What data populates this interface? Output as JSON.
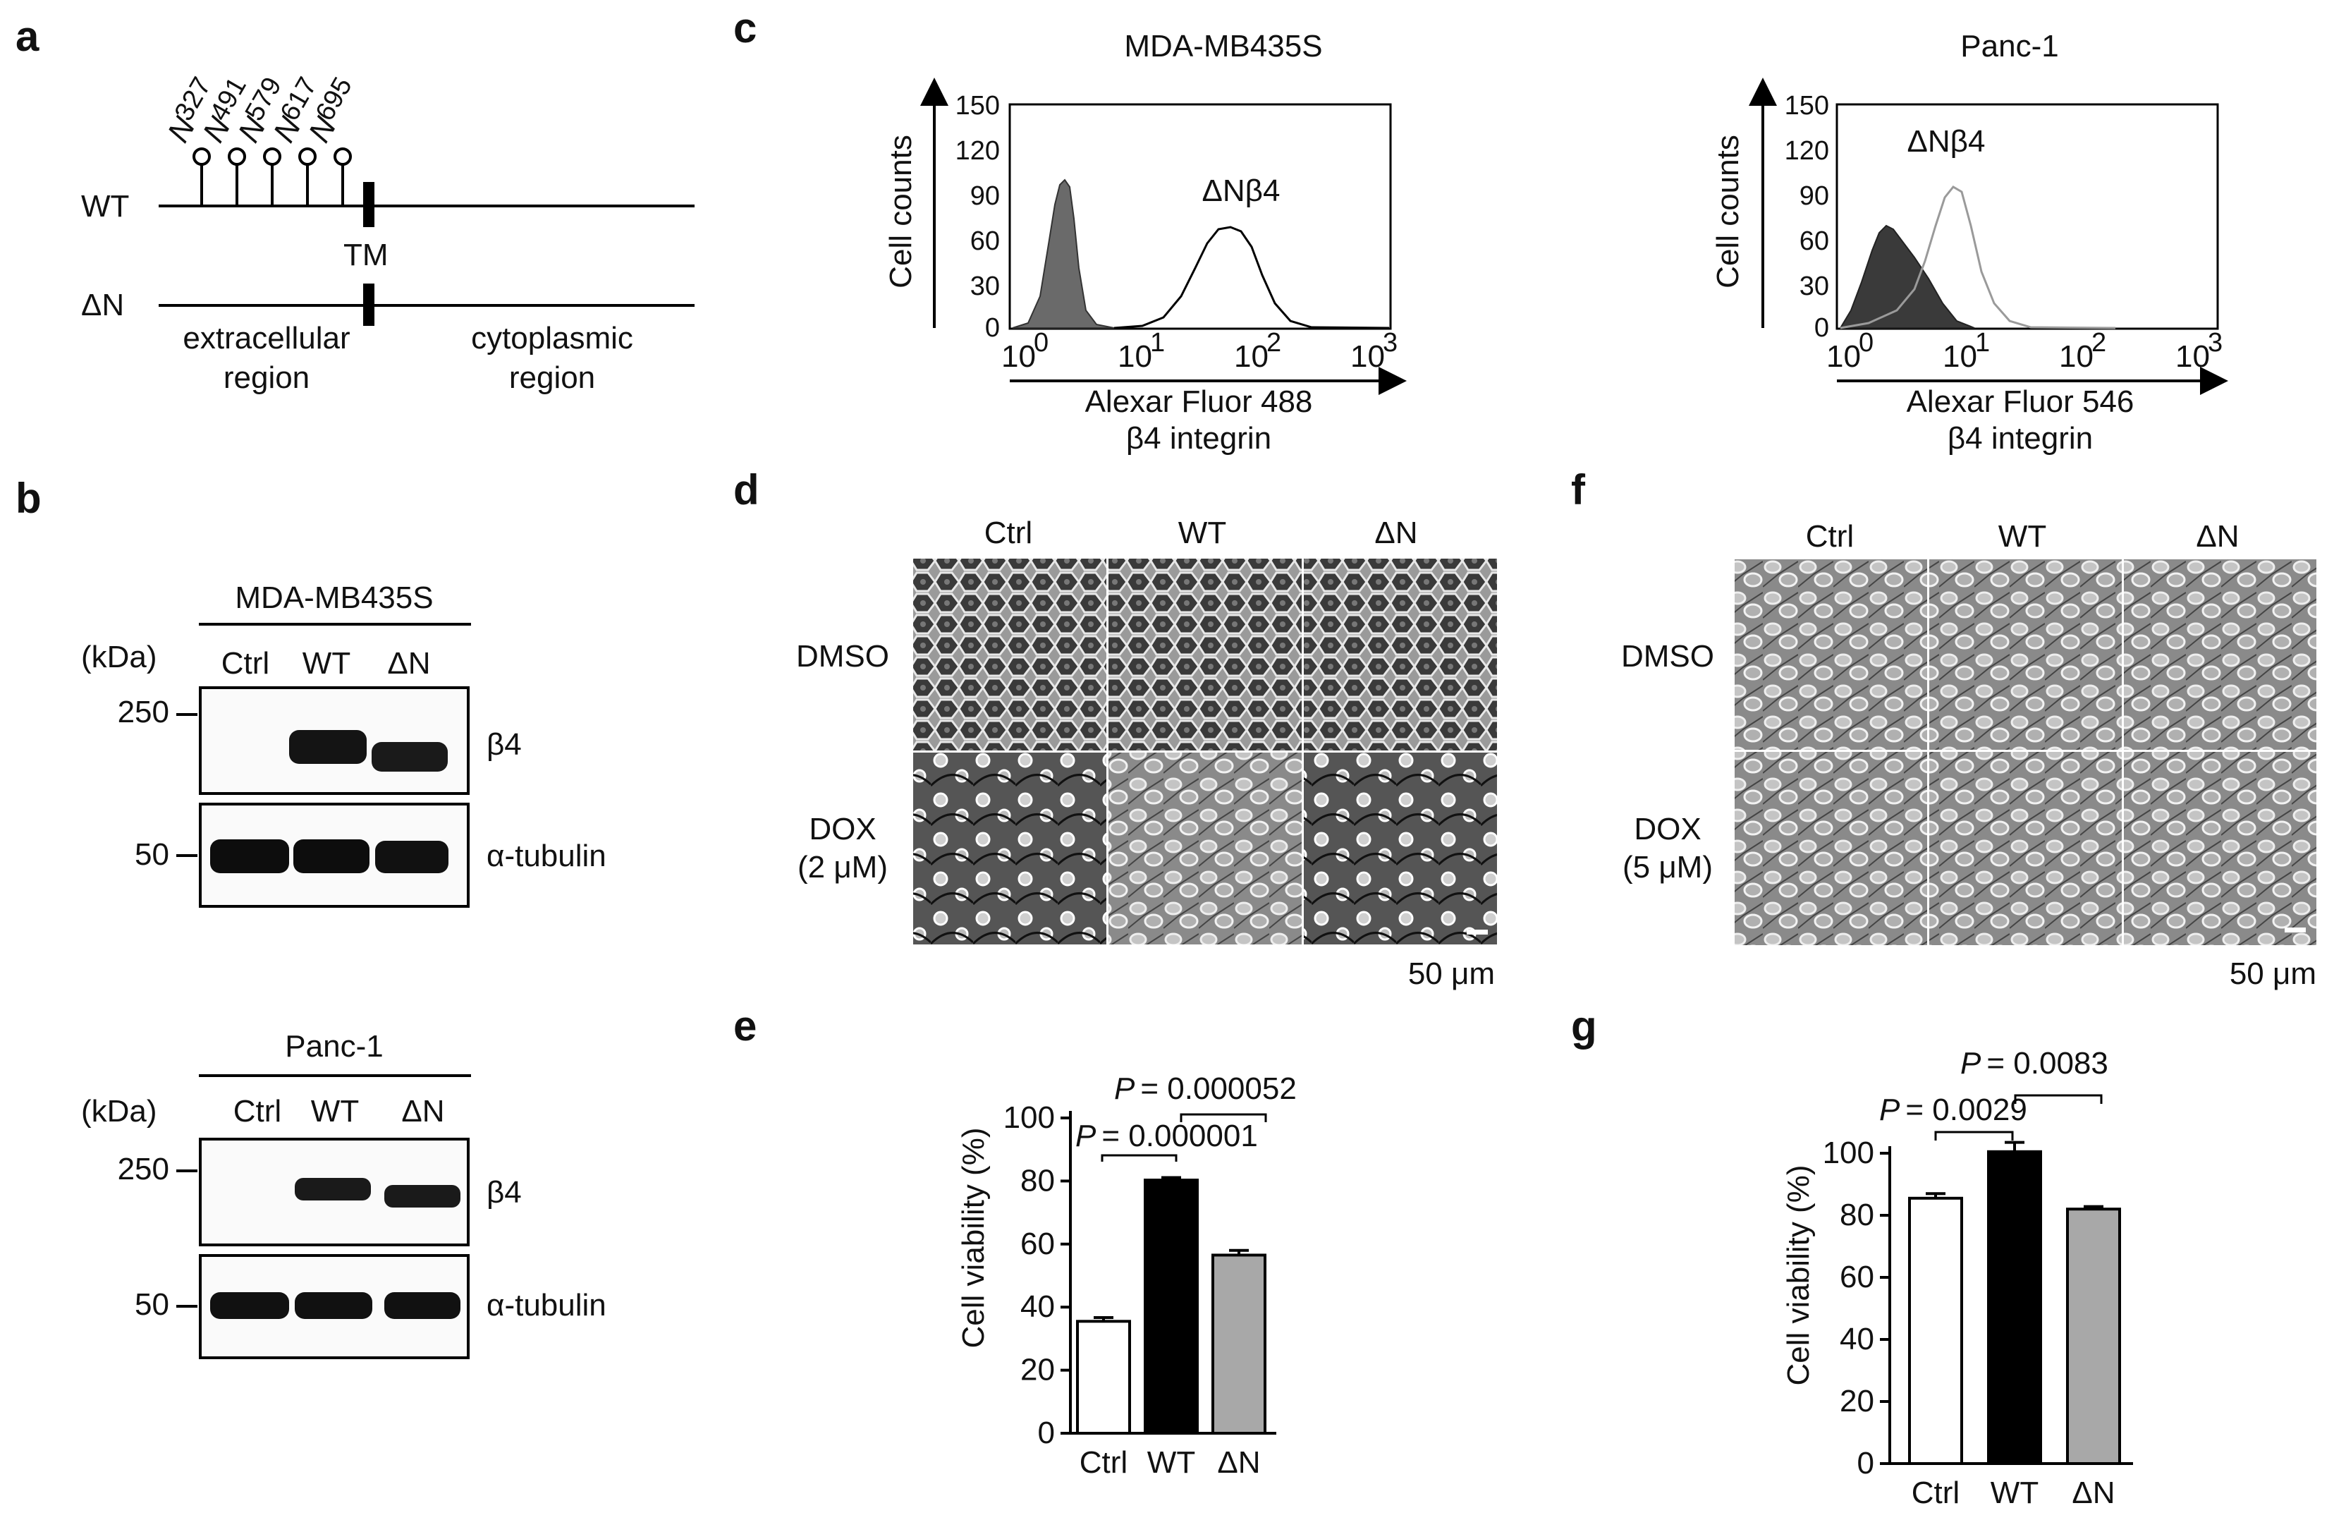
{
  "panels": {
    "a": {
      "letter": "a",
      "sites": [
        "327",
        "491",
        "579",
        "617",
        "695"
      ],
      "site_prefix": "N",
      "wt_label": "WT",
      "dn_label": "ΔN",
      "tm_label": "TM",
      "extracellular": [
        "extracellular",
        "region"
      ],
      "cytoplasmic": [
        "cytoplasmic",
        "region"
      ]
    },
    "b": {
      "letter": "b",
      "blots": [
        {
          "cell_line": "MDA-MB435S",
          "kda": "(kDa)",
          "lanes": [
            "Ctrl",
            "WT",
            "ΔN"
          ],
          "markers": [
            "250",
            "50"
          ],
          "bands": [
            "β4",
            "α-tubulin"
          ]
        },
        {
          "cell_line": "Panc-1",
          "kda": "(kDa)",
          "lanes": [
            "Ctrl",
            "WT",
            "ΔN"
          ],
          "markers": [
            "250",
            "50"
          ],
          "bands": [
            "β4",
            "α-tubulin"
          ]
        }
      ]
    },
    "c": {
      "letter": "c",
      "plots": [
        {
          "title": "MDA-MB435S",
          "annotation": "ΔNβ4",
          "ylabel": "Cell counts",
          "xlabel": [
            "Alexar Fluor 488",
            "β4 integrin"
          ],
          "yticks": [
            "0",
            "30",
            "60",
            "90",
            "120",
            "150"
          ],
          "xticks": [
            "10",
            "10",
            "10",
            "10"
          ],
          "xexp": [
            "0",
            "1",
            "2",
            "3"
          ]
        },
        {
          "title": "Panc-1",
          "annotation": "ΔNβ4",
          "ylabel": "Cell counts",
          "xlabel": [
            "Alexar Fluor 546",
            "β4 integrin"
          ],
          "yticks": [
            "0",
            "30",
            "60",
            "90",
            "120",
            "150"
          ],
          "xticks": [
            "10",
            "10",
            "10",
            "10"
          ],
          "xexp": [
            "0",
            "1",
            "2",
            "3"
          ]
        }
      ]
    },
    "d": {
      "letter": "d",
      "columns": [
        "Ctrl",
        "WT",
        "ΔN"
      ],
      "rows": [
        [
          "DMSO"
        ],
        [
          "DOX",
          "(2 μM)"
        ]
      ],
      "scale": "50 μm"
    },
    "f": {
      "letter": "f",
      "columns": [
        "Ctrl",
        "WT",
        "ΔN"
      ],
      "rows": [
        [
          "DMSO"
        ],
        [
          "DOX",
          "(5 μM)"
        ]
      ],
      "scale": "50 μm"
    },
    "e": {
      "letter": "e",
      "p1": "= 0.000001",
      "p2": "= 0.000052",
      "p_letter": "P"
    },
    "g": {
      "letter": "g",
      "p1": "= 0.0029",
      "p2": "= 0.0083",
      "p_letter": "P"
    }
  },
  "chart_data": [
    {
      "type": "bar",
      "panel": "e",
      "categories": [
        "Ctrl",
        "WT",
        "ΔN"
      ],
      "values": [
        35.5,
        80.3,
        56.5
      ],
      "errors": [
        1.2,
        0.8,
        1.5
      ],
      "colors": [
        "#ffffff",
        "#000000",
        "#a8a8a8"
      ],
      "ylabel": "Cell viability (%)",
      "ylim": [
        0,
        100
      ],
      "yticks": [
        "0",
        "20",
        "40",
        "60",
        "80",
        "100"
      ]
    },
    {
      "type": "bar",
      "panel": "g",
      "categories": [
        "Ctrl",
        "WT",
        "ΔN"
      ],
      "values": [
        85.5,
        100.5,
        82.0
      ],
      "errors": [
        1.5,
        3.0,
        0.8
      ],
      "colors": [
        "#ffffff",
        "#000000",
        "#a8a8a8"
      ],
      "ylabel": "Cell viability (%)",
      "ylim": [
        0,
        100
      ],
      "yticks": [
        "0",
        "20",
        "40",
        "60",
        "80",
        "100"
      ]
    }
  ]
}
